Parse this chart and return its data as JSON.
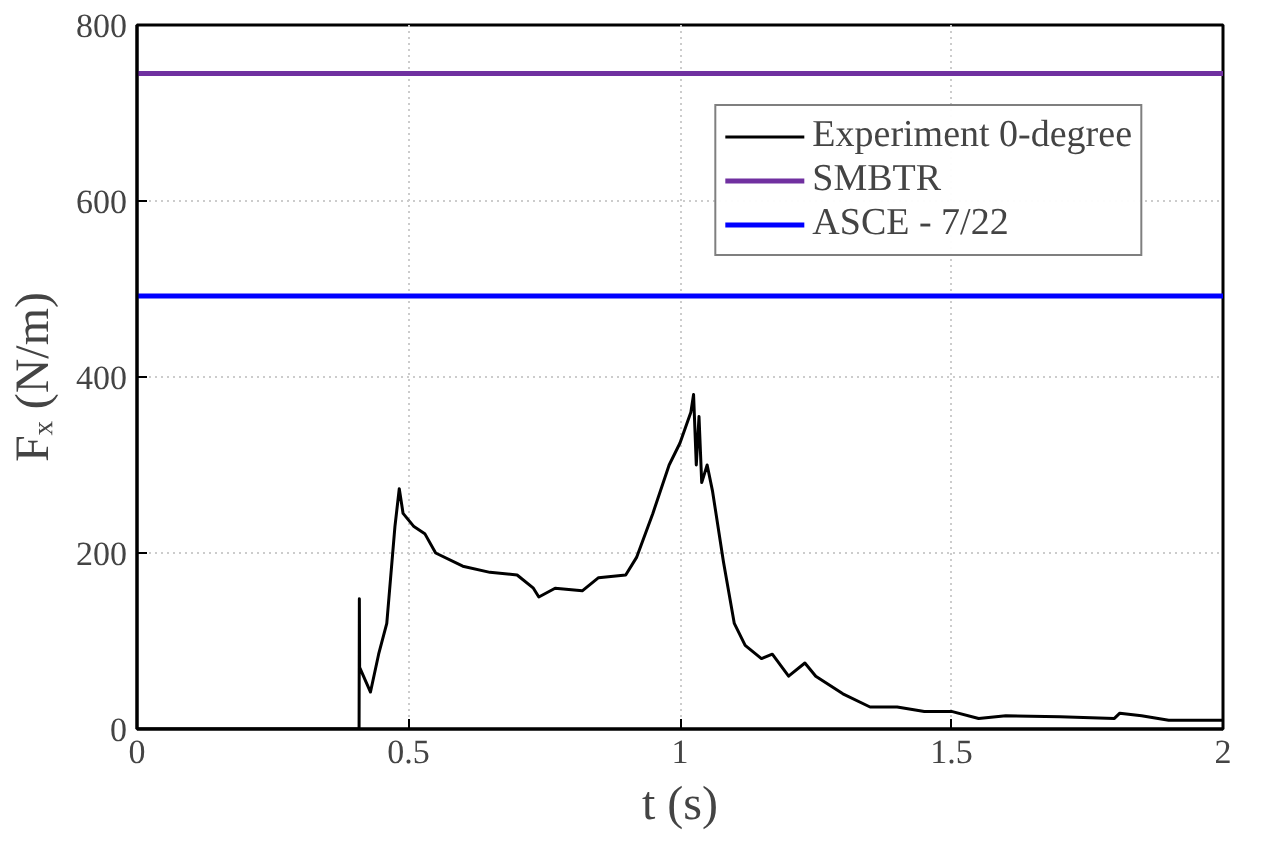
{
  "chart_data": {
    "type": "line",
    "xlabel": "t (s)",
    "ylabel": "Fₓ (N/m)",
    "xlim": [
      0,
      2
    ],
    "ylim": [
      0,
      800
    ],
    "xticks": [
      0,
      0.5,
      1,
      1.5,
      2
    ],
    "yticks": [
      0,
      200,
      400,
      600,
      800
    ],
    "grid": true,
    "legend": "top right",
    "line_style": "solid",
    "marker": "none",
    "series": [
      {
        "name": "Experiment 0-degree",
        "color": "#000000",
        "x": [
          0,
          0.2,
          0.409,
          0.4095,
          0.41,
          0.43,
          0.445,
          0.46,
          0.475,
          0.483,
          0.49,
          0.51,
          0.53,
          0.55,
          0.6,
          0.65,
          0.7,
          0.73,
          0.74,
          0.77,
          0.82,
          0.85,
          0.9,
          0.92,
          0.95,
          0.98,
          1.0,
          1.02,
          1.025,
          1.03,
          1.035,
          1.04,
          1.05,
          1.06,
          1.08,
          1.1,
          1.12,
          1.15,
          1.17,
          1.2,
          1.23,
          1.25,
          1.3,
          1.35,
          1.4,
          1.45,
          1.5,
          1.55,
          1.6,
          1.7,
          1.8,
          1.81,
          1.85,
          1.9,
          2.0
        ],
        "values": [
          0,
          0,
          0,
          148,
          70,
          42,
          85,
          120,
          230,
          273,
          245,
          230,
          222,
          200,
          185,
          178,
          175,
          160,
          150,
          160,
          157,
          172,
          175,
          195,
          245,
          300,
          325,
          360,
          380,
          300,
          355,
          280,
          300,
          270,
          190,
          120,
          95,
          80,
          85,
          60,
          75,
          60,
          40,
          25,
          25,
          20,
          20,
          12,
          15,
          14,
          12,
          18,
          15,
          10,
          10
        ]
      },
      {
        "name": "SMBTR",
        "color": "#7030a0",
        "x": [
          0,
          2
        ],
        "values": [
          745,
          745
        ]
      },
      {
        "name": "ASCE - 7/22",
        "color": "#0000ff",
        "x": [
          0,
          2
        ],
        "values": [
          492,
          492
        ]
      }
    ]
  }
}
